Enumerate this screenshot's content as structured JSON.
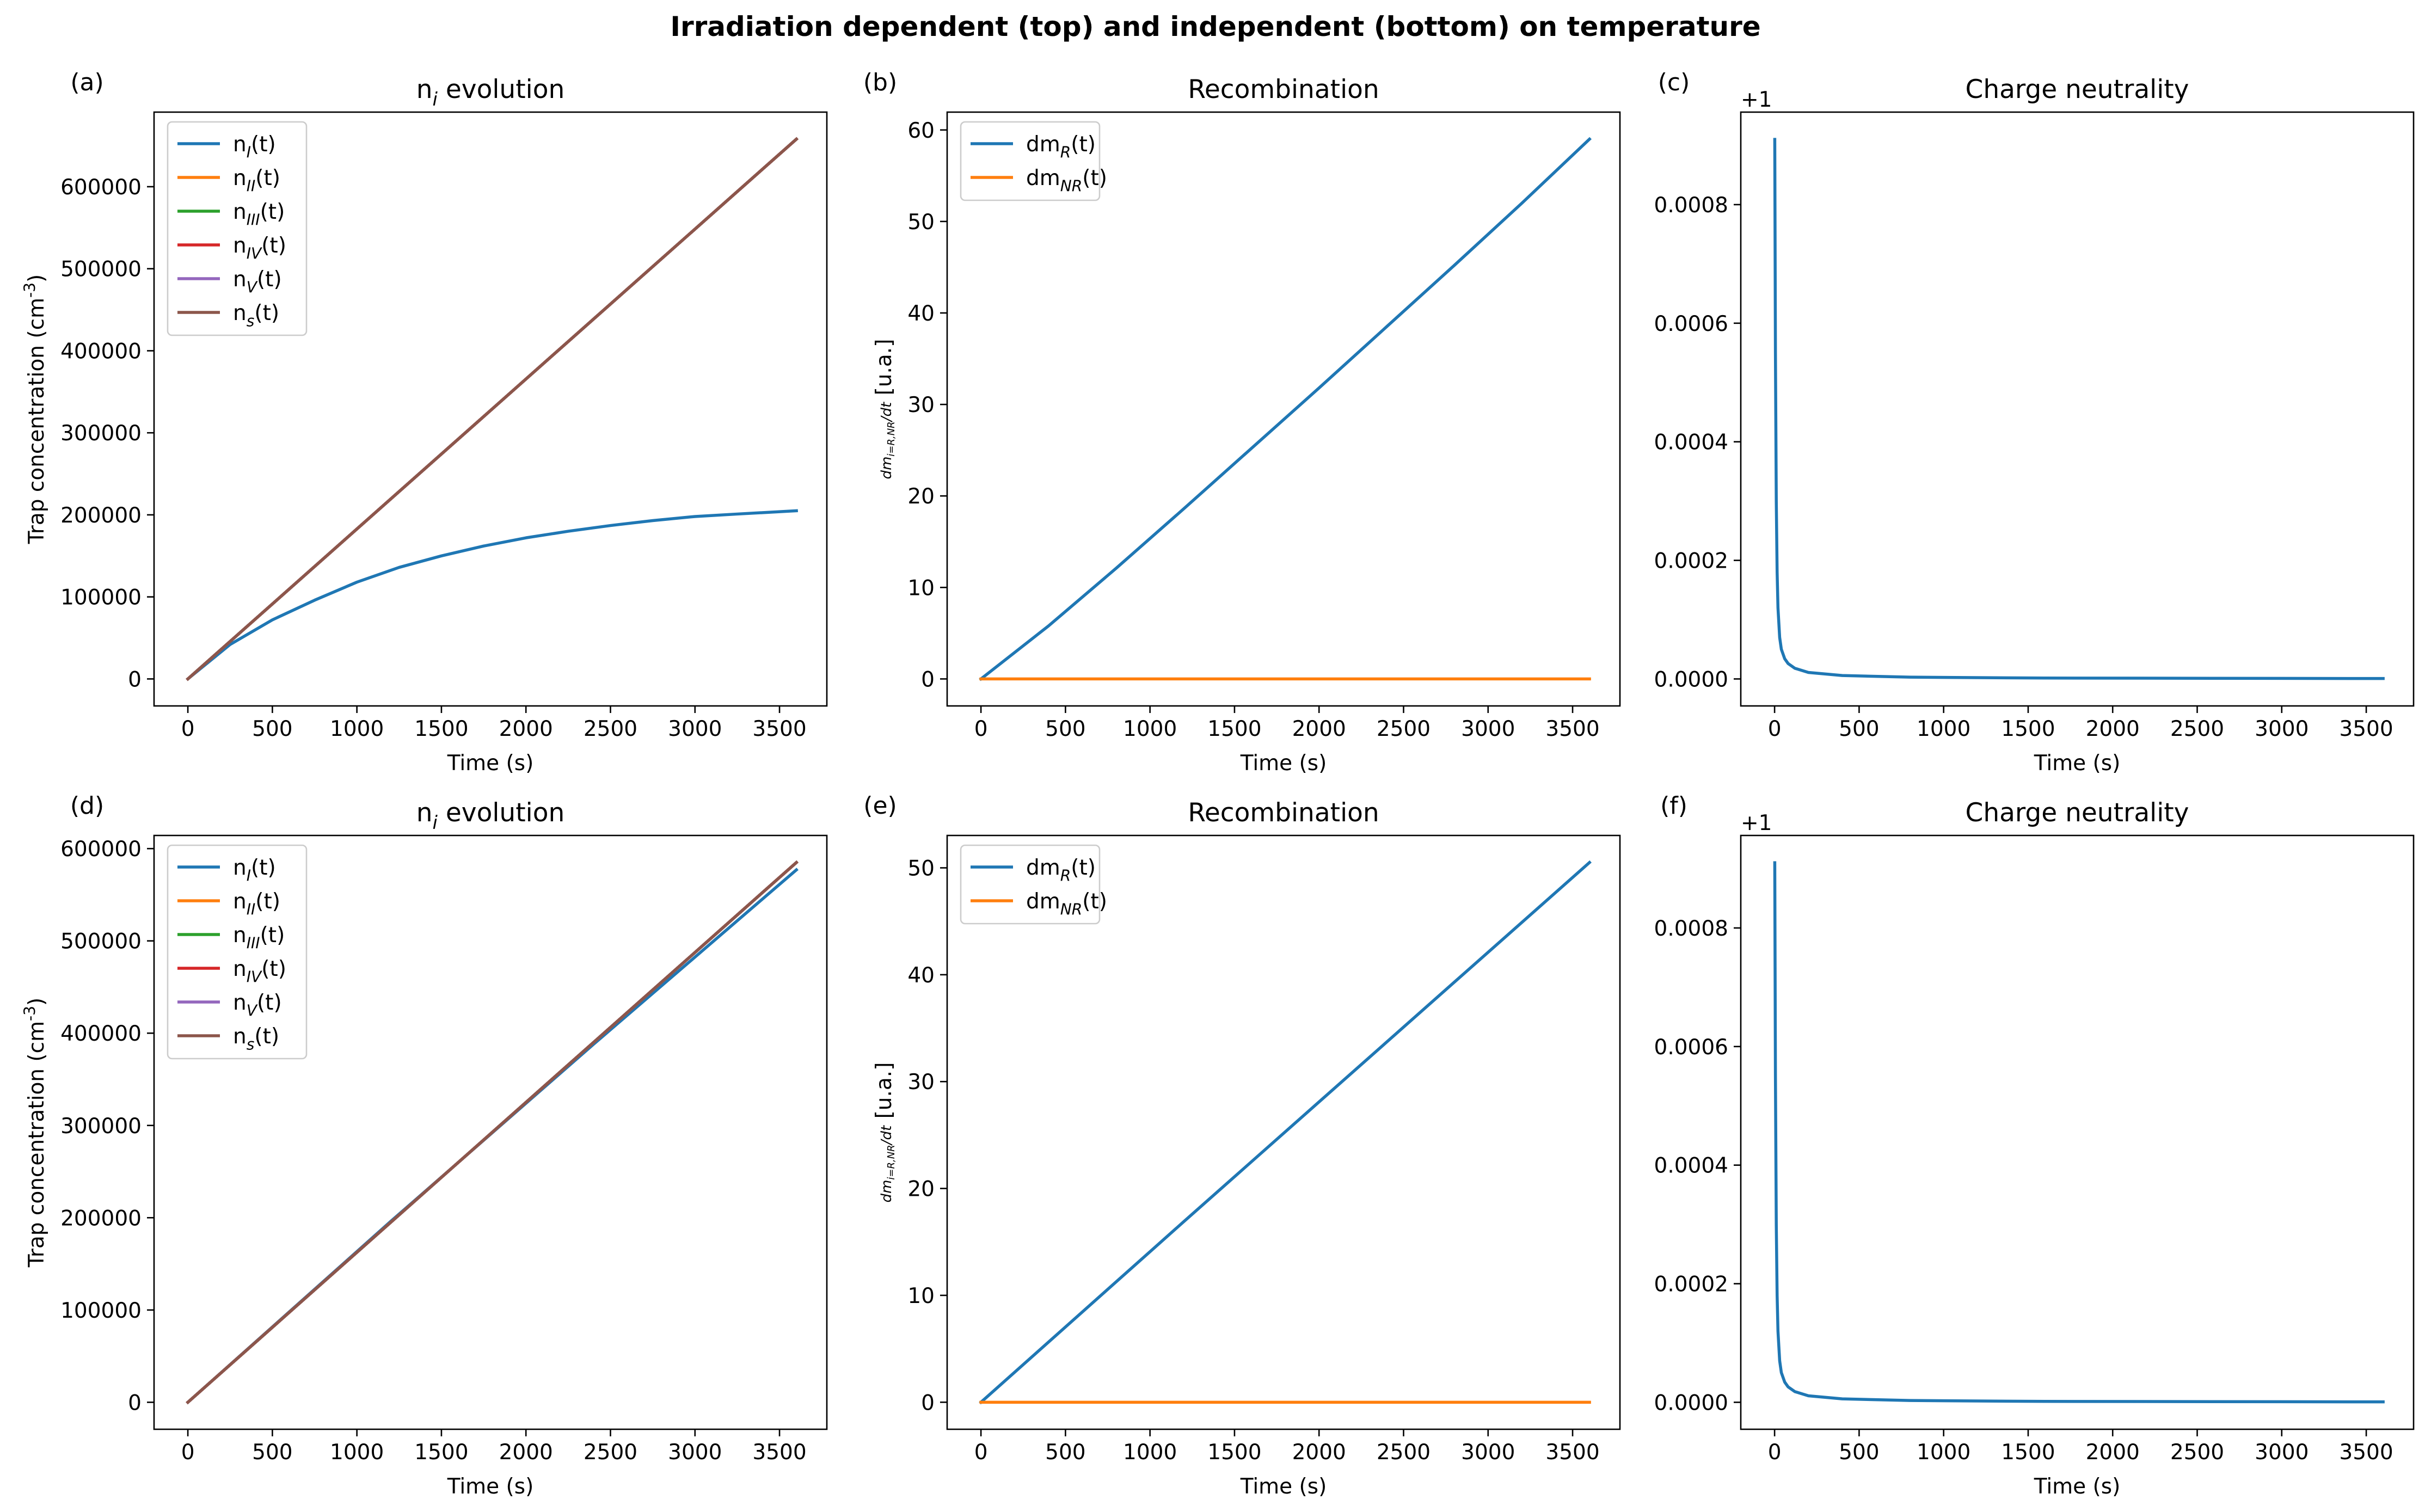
{
  "figure": {
    "suptitle": "Irradiation dependent (top) and independent (bottom) on temperature"
  },
  "colors": {
    "c0": "#1f77b4",
    "c1": "#ff7f0e",
    "c2": "#2ca02c",
    "c3": "#d62728",
    "c4": "#9467bd",
    "c5": "#8c564b"
  },
  "chart_data": [
    {
      "panel": "(a)",
      "type": "line",
      "title": "n_i evolution",
      "xlabel": "Time (s)",
      "ylabel": "Trap concentration (cm^-3)",
      "xlim": [
        -200,
        3780
      ],
      "ylim": [
        -32900,
        690900
      ],
      "xticks": [
        0,
        500,
        1000,
        1500,
        2000,
        2500,
        3000,
        3500
      ],
      "yticks": [
        0,
        100000,
        200000,
        300000,
        400000,
        500000,
        600000
      ],
      "offset_text": "",
      "legend": "top-left",
      "series": [
        {
          "name": "n_I(t)",
          "color": "#1f77b4",
          "x": [
            0,
            250,
            500,
            750,
            1000,
            1250,
            1500,
            1750,
            2000,
            2250,
            2500,
            2750,
            3000,
            3250,
            3600
          ],
          "y": [
            0,
            42000,
            72000,
            96000,
            118000,
            136000,
            150000,
            162000,
            172000,
            180000,
            187000,
            193000,
            198000,
            201000,
            205000
          ]
        },
        {
          "name": "n_II(t)",
          "color": "#ff7f0e",
          "x": [
            0,
            3600
          ],
          "y": [
            0,
            658000
          ]
        },
        {
          "name": "n_III(t)",
          "color": "#2ca02c",
          "x": [
            0,
            3600
          ],
          "y": [
            0,
            658000
          ]
        },
        {
          "name": "n_IV(t)",
          "color": "#d62728",
          "x": [
            0,
            3600
          ],
          "y": [
            0,
            658000
          ]
        },
        {
          "name": "n_V(t)",
          "color": "#9467bd",
          "x": [
            0,
            3600
          ],
          "y": [
            0,
            658000
          ]
        },
        {
          "name": "n_s(t)",
          "color": "#8c564b",
          "x": [
            0,
            3600
          ],
          "y": [
            0,
            658000
          ]
        }
      ]
    },
    {
      "panel": "(b)",
      "type": "line",
      "title": "Recombination",
      "xlabel": "Time (s)",
      "ylabel": "dm_{i=R,NR}/dt [u.a.]",
      "xlim": [
        -200,
        3780
      ],
      "ylim": [
        -2.95,
        61.95
      ],
      "xticks": [
        0,
        500,
        1000,
        1500,
        2000,
        2500,
        3000,
        3500
      ],
      "yticks": [
        0,
        10,
        20,
        30,
        40,
        50,
        60
      ],
      "offset_text": "",
      "legend": "top-left",
      "series": [
        {
          "name": "dm_R(t)",
          "color": "#1f77b4",
          "x": [
            0,
            400,
            800,
            1200,
            1600,
            2000,
            2400,
            2800,
            3200,
            3600
          ],
          "y": [
            0,
            5.8,
            12.1,
            18.6,
            25.2,
            31.8,
            38.5,
            45.2,
            52.0,
            59.0
          ]
        },
        {
          "name": "dm_NR(t)",
          "color": "#ff7f0e",
          "x": [
            0,
            3600
          ],
          "y": [
            0,
            0
          ]
        }
      ]
    },
    {
      "panel": "(c)",
      "type": "line",
      "title": "Charge neutrality",
      "xlabel": "Time (s)",
      "ylabel": "",
      "xlim": [
        -200,
        3780
      ],
      "ylim": [
        -4.55e-05,
        0.000956
      ],
      "xticks": [
        0,
        500,
        1000,
        1500,
        2000,
        2500,
        3000,
        3500
      ],
      "yticks": [
        0,
        0.0002,
        0.0004,
        0.0006,
        0.0008
      ],
      "ytick_labels": [
        "0.0000",
        "0.0002",
        "0.0004",
        "0.0006",
        "0.0008"
      ],
      "offset_text": "+1",
      "legend": "none",
      "series": [
        {
          "name": "",
          "color": "#1f77b4",
          "x": [
            1,
            5,
            10,
            15,
            20,
            30,
            40,
            60,
            80,
            120,
            200,
            400,
            800,
            1600,
            3600
          ],
          "y": [
            0.00091,
            0.00055,
            0.0003,
            0.00018,
            0.00012,
            7e-05,
            5e-05,
            3.4e-05,
            2.6e-05,
            1.8e-05,
            1.1e-05,
            5.8e-06,
            3e-06,
            1.5e-06,
            7e-07
          ]
        }
      ]
    },
    {
      "panel": "(d)",
      "type": "line",
      "title": "n_i evolution",
      "xlabel": "Time (s)",
      "ylabel": "Trap concentration (cm^-3)",
      "xlim": [
        -200,
        3780
      ],
      "ylim": [
        -29250,
        614250
      ],
      "xticks": [
        0,
        500,
        1000,
        1500,
        2000,
        2500,
        3000,
        3500
      ],
      "yticks": [
        0,
        100000,
        200000,
        300000,
        400000,
        500000,
        600000
      ],
      "offset_text": "",
      "legend": "top-left",
      "series": [
        {
          "name": "n_I(t)",
          "color": "#1f77b4",
          "x": [
            0,
            1200,
            2400,
            3600
          ],
          "y": [
            0,
            196000,
            388000,
            577000
          ]
        },
        {
          "name": "n_II(t)",
          "color": "#ff7f0e",
          "x": [
            0,
            3600
          ],
          "y": [
            0,
            585000
          ]
        },
        {
          "name": "n_III(t)",
          "color": "#2ca02c",
          "x": [
            0,
            3600
          ],
          "y": [
            0,
            585000
          ]
        },
        {
          "name": "n_IV(t)",
          "color": "#d62728",
          "x": [
            0,
            3600
          ],
          "y": [
            0,
            585000
          ]
        },
        {
          "name": "n_V(t)",
          "color": "#9467bd",
          "x": [
            0,
            3600
          ],
          "y": [
            0,
            585000
          ]
        },
        {
          "name": "n_s(t)",
          "color": "#8c564b",
          "x": [
            0,
            3600
          ],
          "y": [
            0,
            585000
          ]
        }
      ]
    },
    {
      "panel": "(e)",
      "type": "line",
      "title": "Recombination",
      "xlabel": "Time (s)",
      "ylabel": "dm_{i=R,NR}/dt [u.a.]",
      "xlim": [
        -200,
        3780
      ],
      "ylim": [
        -2.53,
        53.03
      ],
      "xticks": [
        0,
        500,
        1000,
        1500,
        2000,
        2500,
        3000,
        3500
      ],
      "yticks": [
        0,
        10,
        20,
        30,
        40,
        50
      ],
      "offset_text": "",
      "legend": "top-left",
      "series": [
        {
          "name": "dm_R(t)",
          "color": "#1f77b4",
          "x": [
            0,
            1200,
            2400,
            3600
          ],
          "y": [
            0,
            16.9,
            33.7,
            50.5
          ]
        },
        {
          "name": "dm_NR(t)",
          "color": "#ff7f0e",
          "x": [
            0,
            3600
          ],
          "y": [
            0,
            0
          ]
        }
      ]
    },
    {
      "panel": "(f)",
      "type": "line",
      "title": "Charge neutrality",
      "xlabel": "Time (s)",
      "ylabel": "",
      "xlim": [
        -200,
        3780
      ],
      "ylim": [
        -4.55e-05,
        0.000956
      ],
      "xticks": [
        0,
        500,
        1000,
        1500,
        2000,
        2500,
        3000,
        3500
      ],
      "yticks": [
        0,
        0.0002,
        0.0004,
        0.0006,
        0.0008
      ],
      "ytick_labels": [
        "0.0000",
        "0.0002",
        "0.0004",
        "0.0006",
        "0.0008"
      ],
      "offset_text": "+1",
      "legend": "none",
      "series": [
        {
          "name": "",
          "color": "#1f77b4",
          "x": [
            1,
            5,
            10,
            15,
            20,
            30,
            40,
            60,
            80,
            120,
            200,
            400,
            800,
            1600,
            3600
          ],
          "y": [
            0.00091,
            0.00055,
            0.0003,
            0.00018,
            0.00012,
            7e-05,
            5e-05,
            3.4e-05,
            2.6e-05,
            1.8e-05,
            1.1e-05,
            5.8e-06,
            3e-06,
            1.5e-06,
            7e-07
          ]
        }
      ]
    }
  ]
}
